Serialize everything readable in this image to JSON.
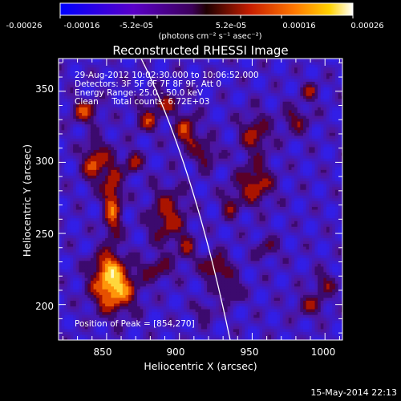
{
  "colorbar": {
    "tick_labels": [
      "-0.00026",
      "-0.00016",
      "-5.2e-05",
      "5.2e-05",
      "0.00016",
      "0.00026"
    ],
    "unit_line": "(photons cm⁻² s⁻¹ asec⁻²)"
  },
  "plot": {
    "title": "Reconstructed RHESSI Image",
    "x_axis_label": "Heliocentric X (arcsec)",
    "y_axis_label": "Heliocentric Y (arcsec)",
    "x_tick_labels": [
      "850",
      "900",
      "950",
      "1000"
    ],
    "y_tick_labels": [
      "200",
      "250",
      "300",
      "350"
    ],
    "x_range": [
      817,
      1012
    ],
    "y_range": [
      175,
      373
    ]
  },
  "annotations": {
    "time_range": "29-Aug-2012 10:02:30.000 to 10:06:52.000",
    "detectors": "Detectors: 3F 5F 6F 7F 8F 9F, Att 0",
    "energy_range": "Energy Range: 25.0 - 50.0 keV",
    "method_counts": "Clean     Total counts: 6.72E+03",
    "peak_position": "Position of Peak = [854,270]"
  },
  "footer": {
    "timestamp": "15-May-2014 22:13"
  }
}
